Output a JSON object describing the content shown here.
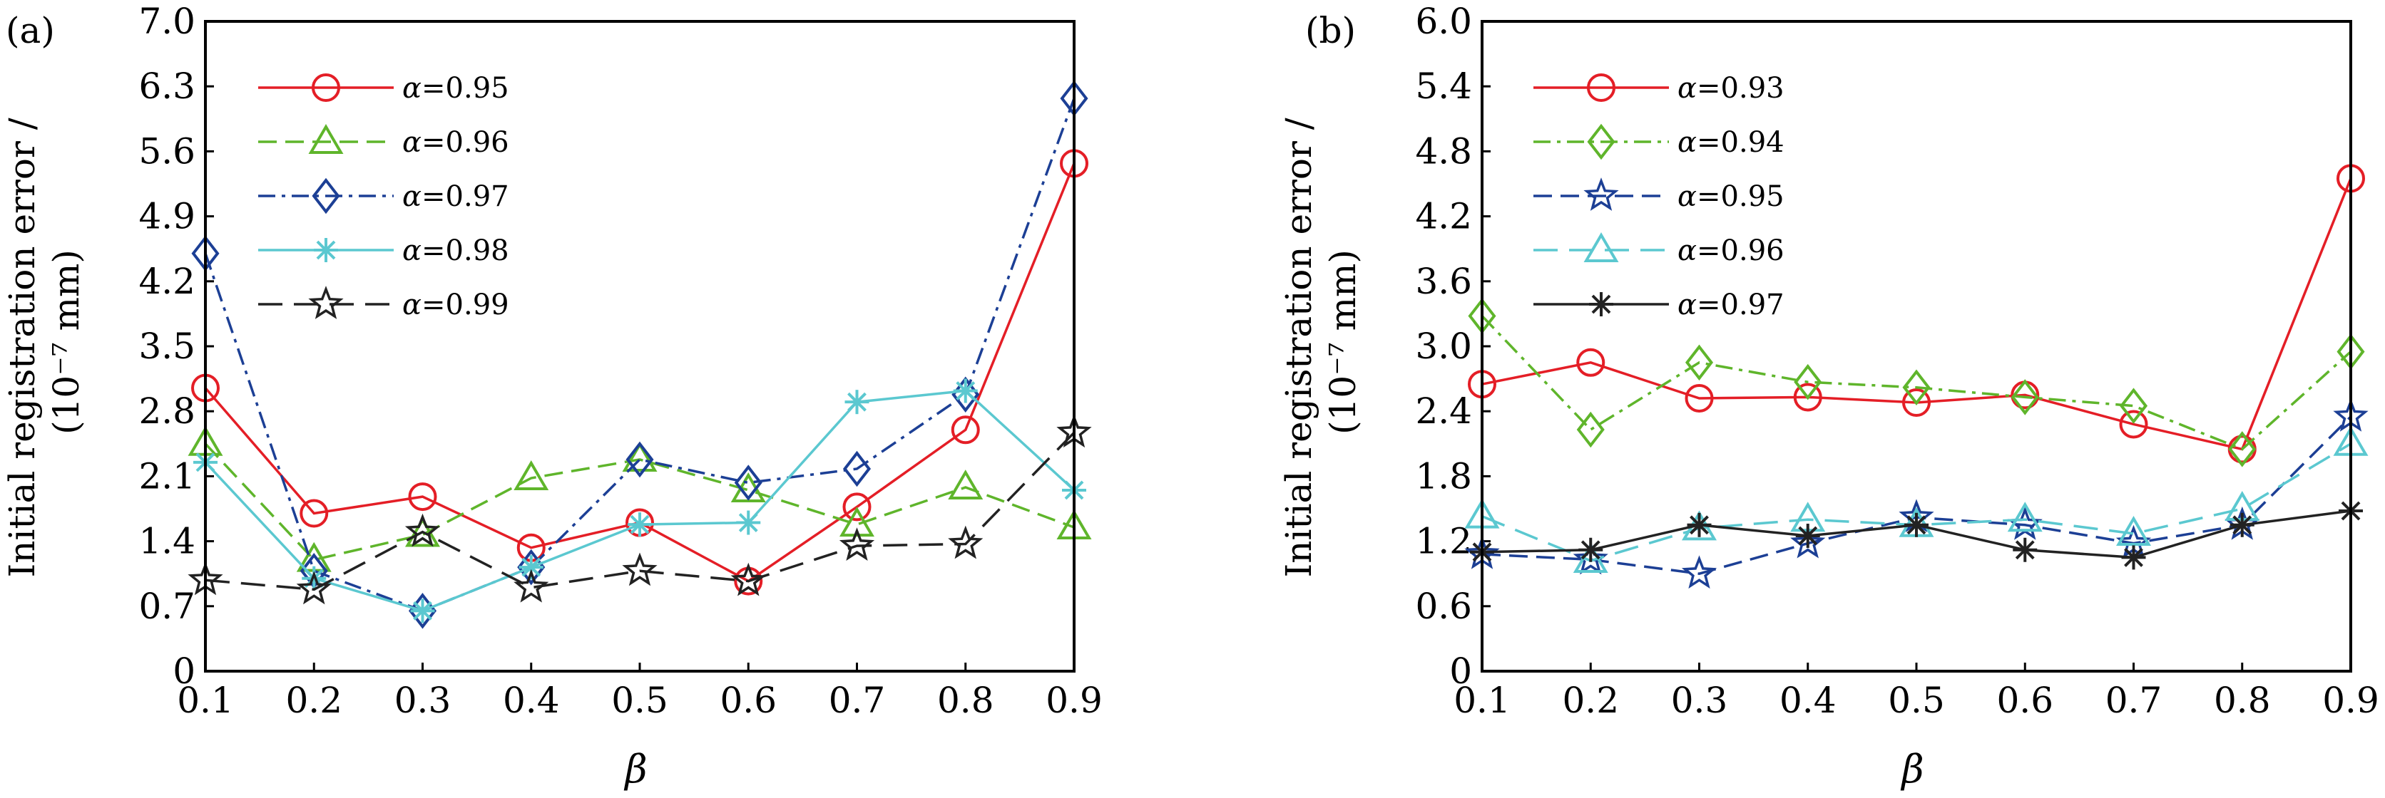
{
  "chart_data": [
    {
      "panel": "(a)",
      "type": "line",
      "xlabel": "β",
      "ylabel_line1": "Initial registration error /",
      "ylabel_line2": "(10⁻⁷ mm)",
      "xlim": [
        0.1,
        0.9
      ],
      "ylim": [
        0,
        7.0
      ],
      "x_ticks": [
        "0.1",
        "0.2",
        "0.3",
        "0.4",
        "0.5",
        "0.6",
        "0.7",
        "0.8",
        "0.9"
      ],
      "y_ticks": [
        "0",
        "0.7",
        "1.4",
        "2.1",
        "2.8",
        "3.5",
        "4.2",
        "4.9",
        "5.6",
        "6.3",
        "7.0"
      ],
      "x": [
        0.1,
        0.2,
        0.3,
        0.4,
        0.5,
        0.6,
        0.7,
        0.8,
        0.9
      ],
      "grid": false,
      "legend_position": "top-left",
      "series": [
        {
          "label": "α=0.95",
          "values": [
            3.05,
            1.7,
            1.88,
            1.33,
            1.6,
            0.97,
            1.77,
            2.6,
            5.47
          ],
          "color": "#e41e26",
          "dash": "solid",
          "marker": "circle"
        },
        {
          "label": "α=0.96",
          "values": [
            2.45,
            1.2,
            1.47,
            2.08,
            2.28,
            1.95,
            1.58,
            1.98,
            1.55
          ],
          "color": "#5fb52b",
          "dash": "dash",
          "marker": "triangle"
        },
        {
          "label": "α=0.97",
          "values": [
            4.5,
            1.08,
            0.65,
            1.12,
            2.28,
            2.03,
            2.18,
            2.98,
            6.17
          ],
          "color": "#1c3f95",
          "dash": "dashdot",
          "marker": "diamond"
        },
        {
          "label": "α=0.98",
          "values": [
            2.25,
            1.0,
            0.65,
            1.12,
            1.58,
            1.6,
            2.9,
            3.02,
            1.95
          ],
          "color": "#5bc8d0",
          "dash": "solid",
          "marker": "asterisk"
        },
        {
          "label": "α=0.99",
          "values": [
            0.98,
            0.88,
            1.5,
            0.9,
            1.08,
            0.97,
            1.35,
            1.37,
            2.57
          ],
          "color": "#222222",
          "dash": "longdash",
          "marker": "star"
        }
      ]
    },
    {
      "panel": "(b)",
      "type": "line",
      "xlabel": "β",
      "ylabel_line1": "Initial registration error /",
      "ylabel_line2": "(10⁻⁷ mm)",
      "xlim": [
        0.1,
        0.9
      ],
      "ylim": [
        0,
        6.0
      ],
      "x_ticks": [
        "0.1",
        "0.2",
        "0.3",
        "0.4",
        "0.5",
        "0.6",
        "0.7",
        "0.8",
        "0.9"
      ],
      "y_ticks": [
        "0",
        "0.6",
        "1.2",
        "1.8",
        "2.4",
        "3.0",
        "3.6",
        "4.2",
        "4.8",
        "5.4",
        "6.0"
      ],
      "x": [
        0.1,
        0.2,
        0.3,
        0.4,
        0.5,
        0.6,
        0.7,
        0.8,
        0.9
      ],
      "grid": false,
      "legend_position": "top-left",
      "series": [
        {
          "label": "α=0.93",
          "values": [
            2.65,
            2.85,
            2.52,
            2.53,
            2.48,
            2.55,
            2.28,
            2.05,
            4.55
          ],
          "color": "#e41e26",
          "dash": "solid",
          "marker": "circle"
        },
        {
          "label": "α=0.94",
          "values": [
            3.28,
            2.23,
            2.85,
            2.67,
            2.62,
            2.53,
            2.45,
            2.05,
            2.95
          ],
          "color": "#5fb52b",
          "dash": "dashdot",
          "marker": "diamond"
        },
        {
          "label": "α=0.95",
          "values": [
            1.08,
            1.03,
            0.9,
            1.18,
            1.42,
            1.35,
            1.18,
            1.35,
            2.35
          ],
          "color": "#1c3f95",
          "dash": "dash",
          "marker": "star"
        },
        {
          "label": "α=0.96",
          "values": [
            1.43,
            1.02,
            1.32,
            1.4,
            1.35,
            1.4,
            1.27,
            1.5,
            2.1
          ],
          "color": "#5bc8d0",
          "dash": "longdash",
          "marker": "triangle"
        },
        {
          "label": "α=0.97",
          "values": [
            1.1,
            1.12,
            1.35,
            1.25,
            1.35,
            1.12,
            1.05,
            1.35,
            1.48
          ],
          "color": "#222222",
          "dash": "solid",
          "marker": "asterisk"
        }
      ]
    }
  ]
}
